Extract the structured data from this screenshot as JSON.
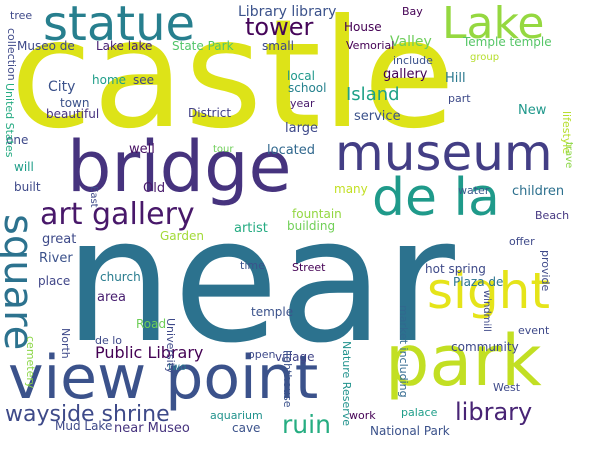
{
  "words": [
    {
      "text": "castle",
      "color": "#dde318",
      "rot": 0
    },
    {
      "text": "near",
      "color": "#2c728e",
      "rot": 0
    },
    {
      "text": "park",
      "color": "#c2df23",
      "rot": 0
    },
    {
      "text": "view point",
      "color": "#3b528b",
      "rot": 0
    },
    {
      "text": "bridge",
      "color": "#46337e",
      "rot": 0
    },
    {
      "text": "museum",
      "color": "#433e85",
      "rot": 0
    },
    {
      "text": "statue",
      "color": "#277f8e",
      "rot": 0
    },
    {
      "text": "de la",
      "color": "#1f9a8a",
      "rot": 0
    },
    {
      "text": "sight",
      "color": "#e5e419",
      "rot": 0
    },
    {
      "text": "Lake",
      "color": "#95d840",
      "rot": 0
    },
    {
      "text": "square",
      "color": "#2c728e",
      "rot": 90
    },
    {
      "text": "art gallery",
      "color": "#48186a",
      "rot": 0
    },
    {
      "text": "tower",
      "color": "#450559",
      "rot": 0
    },
    {
      "text": "library",
      "color": "#482475",
      "rot": 0
    },
    {
      "text": "wayside shrine",
      "color": "#3e4a89",
      "rot": 0
    },
    {
      "text": "ruin",
      "color": "#26ad81",
      "rot": 0
    },
    {
      "text": "Island",
      "color": "#1fa187",
      "rot": 0
    },
    {
      "text": "Library library",
      "color": "#3b528b",
      "rot": 0
    },
    {
      "text": "Public Library",
      "color": "#440154",
      "rot": 0
    },
    {
      "text": "Museo de",
      "color": "#3e4989",
      "rot": 0
    },
    {
      "text": "Lake lake",
      "color": "#482173",
      "rot": 0
    },
    {
      "text": "State Park",
      "color": "#52c569",
      "rot": 0
    },
    {
      "text": "small",
      "color": "#3e4989",
      "rot": 0
    },
    {
      "text": "House",
      "color": "#440154",
      "rot": 0
    },
    {
      "text": "Valley",
      "color": "#6ccd5a",
      "rot": 0
    },
    {
      "text": "Vemorial",
      "color": "#440154",
      "rot": 0
    },
    {
      "text": "include",
      "color": "#3b528b",
      "rot": 0
    },
    {
      "text": "Temple temple",
      "color": "#56c667",
      "rot": 0
    },
    {
      "text": "group",
      "color": "#b5de2b",
      "rot": 0
    },
    {
      "text": "Bay",
      "color": "#440154",
      "rot": 0
    },
    {
      "text": "tree",
      "color": "#3e4989",
      "rot": 0
    },
    {
      "text": "City",
      "color": "#3b528b",
      "rot": 0
    },
    {
      "text": "home",
      "color": "#1f9e89",
      "rot": 0
    },
    {
      "text": "see",
      "color": "#404688",
      "rot": 0
    },
    {
      "text": "town",
      "color": "#3b528b",
      "rot": 0
    },
    {
      "text": "beautiful",
      "color": "#46327e",
      "rot": 0
    },
    {
      "text": "District",
      "color": "#424086",
      "rot": 0
    },
    {
      "text": "local",
      "color": "#1f988b",
      "rot": 0
    },
    {
      "text": "school",
      "color": "#26828e",
      "rot": 0
    },
    {
      "text": "year",
      "color": "#481a6c",
      "rot": 0
    },
    {
      "text": "gallery",
      "color": "#440154",
      "rot": 0
    },
    {
      "text": "Hill",
      "color": "#2a788e",
      "rot": 0
    },
    {
      "text": "part",
      "color": "#3e4a89",
      "rot": 0
    },
    {
      "text": "service",
      "color": "#3b528b",
      "rot": 0
    },
    {
      "text": "New",
      "color": "#1f988b",
      "rot": 0
    },
    {
      "text": "large",
      "color": "#3e4989",
      "rot": 0
    },
    {
      "text": "tour",
      "color": "#6ece58",
      "rot": 0
    },
    {
      "text": "located",
      "color": "#31688e",
      "rot": 0
    },
    {
      "text": "well",
      "color": "#471063",
      "rot": 0
    },
    {
      "text": "Old",
      "color": "#481a6c",
      "rot": 0
    },
    {
      "text": "many",
      "color": "#c2df23",
      "rot": 0
    },
    {
      "text": "water",
      "color": "#38598c",
      "rot": 0
    },
    {
      "text": "children",
      "color": "#2d708e",
      "rot": 0
    },
    {
      "text": "Garden",
      "color": "#a2da37",
      "rot": 0
    },
    {
      "text": "artist",
      "color": "#25ab82",
      "rot": 0
    },
    {
      "text": "fountain",
      "color": "#93d741",
      "rot": 0
    },
    {
      "text": "building",
      "color": "#70cf57",
      "rot": 0
    },
    {
      "text": "Beach",
      "color": "#453781",
      "rot": 0
    },
    {
      "text": "offer",
      "color": "#3e4989",
      "rot": 0
    },
    {
      "text": "great",
      "color": "#3e4a89",
      "rot": 0
    },
    {
      "text": "River",
      "color": "#3b528b",
      "rot": 0
    },
    {
      "text": "place",
      "color": "#404688",
      "rot": 0
    },
    {
      "text": "church",
      "color": "#287c8e",
      "rot": 0
    },
    {
      "text": "time",
      "color": "#3b528b",
      "rot": 0
    },
    {
      "text": "Street",
      "color": "#440154",
      "rot": 0
    },
    {
      "text": "hot spring",
      "color": "#3e4a89",
      "rot": 0
    },
    {
      "text": "Plaza de",
      "color": "#2b748e",
      "rot": 0
    },
    {
      "text": "area",
      "color": "#481f70",
      "rot": 0
    },
    {
      "text": "Road",
      "color": "#6ece58",
      "rot": 0
    },
    {
      "text": "de lo",
      "color": "#3e4989",
      "rot": 0
    },
    {
      "text": "temple",
      "color": "#3b528b",
      "rot": 0
    },
    {
      "text": "event",
      "color": "#3e4989",
      "rot": 0
    },
    {
      "text": "community",
      "color": "#3e4989",
      "rot": 0
    },
    {
      "text": "open",
      "color": "#3e4a89",
      "rot": 0
    },
    {
      "text": "village",
      "color": "#414487",
      "rot": 0
    },
    {
      "text": "two",
      "color": "#2a788e",
      "rot": 0
    },
    {
      "text": "West",
      "color": "#3e4989",
      "rot": 0
    },
    {
      "text": "work",
      "color": "#440154",
      "rot": 0
    },
    {
      "text": "palace",
      "color": "#1f9e89",
      "rot": 0
    },
    {
      "text": "aquarium",
      "color": "#20928c",
      "rot": 0
    },
    {
      "text": "cave",
      "color": "#3b528b",
      "rot": 0
    },
    {
      "text": "National Park",
      "color": "#3b528b",
      "rot": 0
    },
    {
      "text": "Mud Lake",
      "color": "#3e4989",
      "rot": 0
    },
    {
      "text": "near Museo",
      "color": "#46337e",
      "rot": 0
    },
    {
      "text": "will",
      "color": "#1f9e89",
      "rot": 0
    },
    {
      "text": "built",
      "color": "#3e4989",
      "rot": 0
    },
    {
      "text": "one",
      "color": "#3e4989",
      "rot": 0
    },
    {
      "text": "East",
      "color": "#3e4989",
      "rot": 90
    },
    {
      "text": "United States",
      "color": "#25ab82",
      "rot": 90
    },
    {
      "text": "collection",
      "color": "#3e4989",
      "rot": 90
    },
    {
      "text": "cemetery",
      "color": "#8bd646",
      "rot": 90
    },
    {
      "text": "North",
      "color": "#3e4989",
      "rot": 90
    },
    {
      "text": "University",
      "color": "#3e4989",
      "rot": 90
    },
    {
      "text": "lighthouse",
      "color": "#3b528b",
      "rot": 90
    },
    {
      "text": "Nature Reserve",
      "color": "#20928c",
      "rot": 90
    },
    {
      "text": "market including",
      "color": "#31688e",
      "rot": 90
    },
    {
      "text": "provide",
      "color": "#3e4989",
      "rot": 90
    },
    {
      "text": "windmill",
      "color": "#3e4989",
      "rot": 90
    },
    {
      "text": "lifestyle",
      "color": "#b5de2b",
      "rot": 90
    },
    {
      "text": "trave",
      "color": "#8bd646",
      "rot": 90
    }
  ]
}
